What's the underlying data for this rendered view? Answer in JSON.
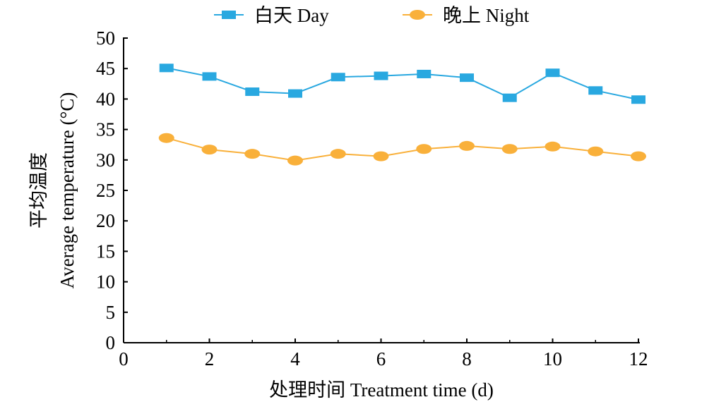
{
  "chart_data": {
    "type": "line",
    "title": "",
    "xlabel": "处理时间 Treatment time (d)",
    "ylabel_cn": "平均温度",
    "ylabel": "Average temperature (°C)",
    "xlim": [
      0,
      12
    ],
    "ylim": [
      0,
      50
    ],
    "xticks": [
      0,
      2,
      4,
      6,
      8,
      10,
      12
    ],
    "yticks": [
      0,
      5,
      10,
      15,
      20,
      25,
      30,
      35,
      40,
      45,
      50
    ],
    "grid": false,
    "legend_position": "top",
    "x": [
      1,
      2,
      3,
      4,
      5,
      6,
      7,
      8,
      9,
      10,
      11,
      12
    ],
    "series": [
      {
        "name": "白天 Day",
        "marker": "square",
        "color": "#29a8e0",
        "values": [
          45.1,
          43.7,
          41.2,
          40.9,
          43.6,
          43.8,
          44.1,
          43.5,
          40.2,
          44.3,
          41.4,
          39.9
        ]
      },
      {
        "name": "晚上 Night",
        "marker": "circle",
        "color": "#f9b03a",
        "values": [
          33.6,
          31.7,
          31.0,
          29.9,
          31.0,
          30.6,
          31.8,
          32.3,
          31.8,
          32.2,
          31.4,
          30.6
        ]
      }
    ]
  }
}
